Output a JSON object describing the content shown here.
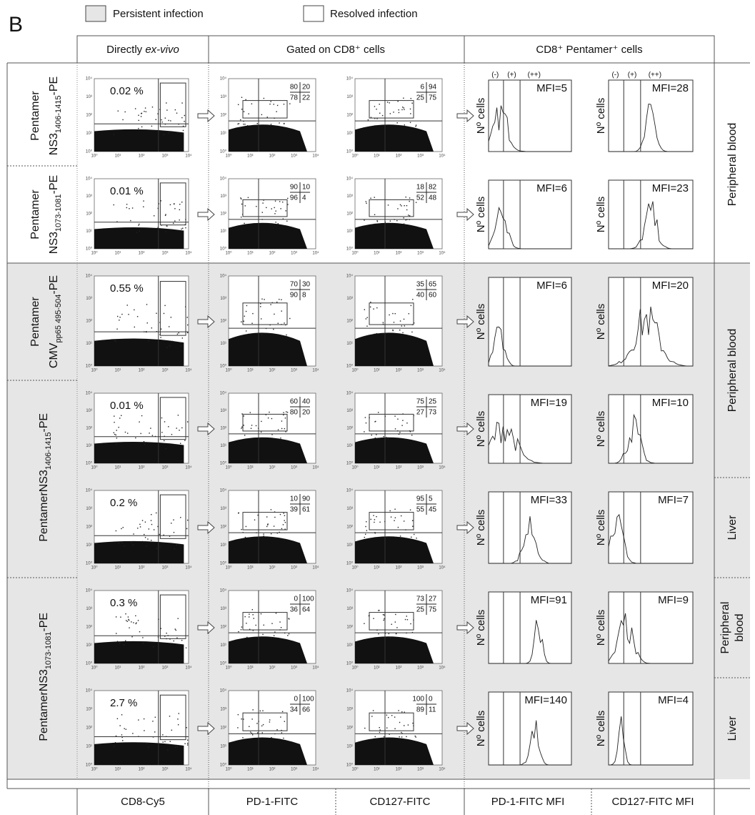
{
  "panel_label": "B",
  "legend": [
    {
      "label": "Persistent infection",
      "color": "#e6e6e6"
    },
    {
      "label": "Resolved infection",
      "color": "#ffffff"
    }
  ],
  "header": [
    {
      "text": "Directly ",
      "italic": "ex-vivo"
    },
    {
      "text": "Gated on CD8⁺ cells"
    },
    {
      "text": "CD8⁺ Pentamer⁺ cells"
    }
  ],
  "columns": [
    "CD8-Cy5",
    "PD-1-FITC",
    "CD127-FITC",
    "PD-1-FITC MFI",
    "CD127-FITC MFI"
  ],
  "axis_ticks": [
    "10⁰",
    "10¹",
    "10²",
    "10³",
    "10⁴"
  ],
  "histogram_y_label": "Nº cells",
  "gate_labels": [
    "(-)",
    "(+)",
    "(++)"
  ],
  "row_labels": [
    {
      "text": "Pentamer",
      "base": "NS3",
      "sub": "1406-1415",
      "suffix": "-PE"
    },
    {
      "text": "Pentamer",
      "base": "NS3",
      "sub": "1073-1081",
      "suffix": "-PE"
    },
    {
      "text": "Pentamer",
      "base": "CMV",
      "sub": "pp65 495-504",
      "suffix": "-PE"
    },
    {
      "text": "Pentamer",
      "base": "NS3",
      "sub": "1406-1415",
      "suffix": "-PE"
    },
    {
      "text": "Pentamer",
      "base": "NS3",
      "sub": "1073-1081",
      "suffix": "-PE"
    }
  ],
  "tissue_labels": [
    [
      "Peripheral blood"
    ],
    [
      "Peripheral blood"
    ],
    [
      "Liver"
    ],
    [
      "Peripheral",
      "blood"
    ],
    [
      "Liver"
    ]
  ],
  "rows": [
    {
      "percent": "0.02 %",
      "pd1": [
        80,
        20,
        78,
        22
      ],
      "cd127": [
        6,
        94,
        25,
        75
      ],
      "mfi_pd1": "MFI=5",
      "mfi_cd127": "MFI=28"
    },
    {
      "percent": "0.01 %",
      "pd1": [
        90,
        10,
        96,
        4
      ],
      "cd127": [
        18,
        82,
        52,
        48
      ],
      "mfi_pd1": "MFI=6",
      "mfi_cd127": "MFI=23"
    },
    {
      "percent": "0.55 %",
      "pd1": [
        70,
        30,
        90,
        8
      ],
      "cd127": [
        35,
        65,
        40,
        60
      ],
      "mfi_pd1": "MFI=6",
      "mfi_cd127": "MFI=20"
    },
    {
      "percent": "0.01 %",
      "pd1": [
        60,
        40,
        80,
        20
      ],
      "cd127": [
        75,
        25,
        27,
        73
      ],
      "mfi_pd1": "MFI=19",
      "mfi_cd127": "MFI=10"
    },
    {
      "percent": "0.2 %",
      "pd1": [
        10,
        90,
        39,
        61
      ],
      "cd127": [
        95,
        5,
        55,
        45
      ],
      "mfi_pd1": "MFI=33",
      "mfi_cd127": "MFI=7"
    },
    {
      "percent": "0.3 %",
      "pd1": [
        0,
        100,
        36,
        64
      ],
      "cd127": [
        73,
        27,
        25,
        75
      ],
      "mfi_pd1": "MFI=91",
      "mfi_cd127": "MFI=9"
    },
    {
      "percent": "2.7 %",
      "pd1": [
        0,
        100,
        34,
        66
      ],
      "cd127": [
        100,
        0,
        89,
        11
      ],
      "mfi_pd1": "MFI=140",
      "mfi_cd127": "MFI=4"
    }
  ]
}
